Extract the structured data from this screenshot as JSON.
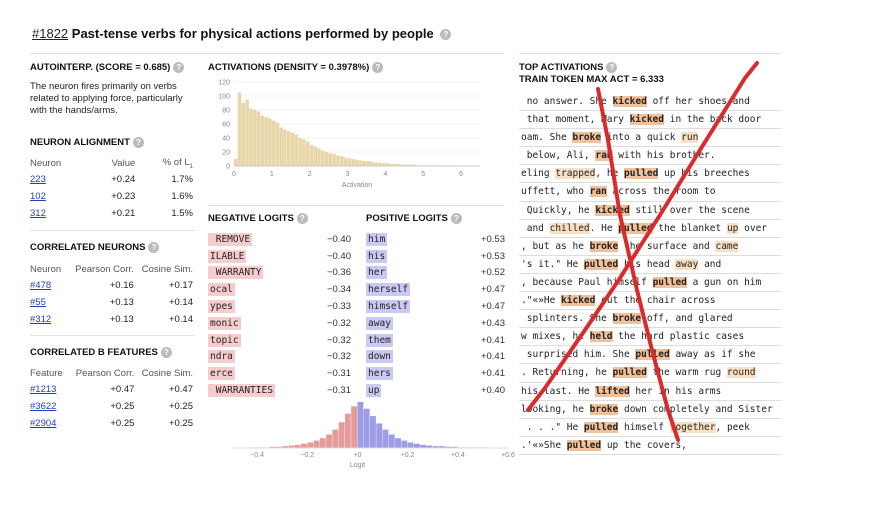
{
  "header": {
    "id_link": "#1822",
    "title": "Past-tense verbs for physical actions performed by people"
  },
  "autointerp": {
    "heading": "AUTOINTERP. (SCORE = 0.685)",
    "description": "The neuron fires primarily on verbs related to applying force, particularly with the hands/arms."
  },
  "alignment": {
    "heading": "NEURON ALIGNMENT",
    "columns": [
      "Neuron",
      "Value",
      "% of L1"
    ],
    "rows": [
      [
        "223",
        "+0.24",
        "1.7%"
      ],
      [
        "102",
        "+0.23",
        "1.6%"
      ],
      [
        "312",
        "+0.21",
        "1.5%"
      ]
    ]
  },
  "correlated_neurons": {
    "heading": "CORRELATED NEURONS",
    "columns": [
      "Neuron",
      "Pearson Corr.",
      "Cosine Sim."
    ],
    "rows": [
      [
        "#478",
        "+0.16",
        "+0.17"
      ],
      [
        "#55",
        "+0.13",
        "+0.14"
      ],
      [
        "#312",
        "+0.13",
        "+0.14"
      ]
    ]
  },
  "correlated_b": {
    "heading": "CORRELATED B FEATURES",
    "columns": [
      "Feature",
      "Pearson Corr.",
      "Cosine Sim."
    ],
    "rows": [
      [
        "#1213",
        "+0.47",
        "+0.47"
      ],
      [
        "#3622",
        "+0.25",
        "+0.25"
      ],
      [
        "#2904",
        "+0.25",
        "+0.25"
      ]
    ]
  },
  "activations": {
    "heading": "ACTIVATIONS (DENSITY = 0.3978%)",
    "chart_data": {
      "type": "bar",
      "xlabel": "Activation",
      "ylabel": "",
      "xlim": [
        0,
        6.5
      ],
      "ylim": [
        0,
        120
      ],
      "x_ticks": [
        "0",
        "1",
        "2",
        "3",
        "4",
        "5",
        "6"
      ],
      "y_ticks": [
        "0",
        "20",
        "40",
        "60",
        "80",
        "100",
        "120"
      ],
      "bin_width": 0.1,
      "values": [
        10,
        105,
        90,
        95,
        82,
        80,
        78,
        72,
        70,
        68,
        65,
        62,
        55,
        52,
        50,
        48,
        45,
        40,
        38,
        35,
        30,
        28,
        25,
        22,
        20,
        18,
        17,
        15,
        14,
        12,
        11,
        10,
        9,
        8,
        7,
        7,
        6,
        5,
        5,
        4,
        4,
        3,
        3,
        3,
        2,
        2,
        2,
        2,
        1,
        1,
        1,
        1,
        1,
        1,
        1,
        0,
        0,
        1,
        0,
        0,
        0,
        0,
        0,
        0,
        0
      ],
      "color": "#e8d5a8"
    }
  },
  "negative_logits": {
    "heading": "NEGATIVE LOGITS",
    "items": [
      {
        "token": " REMOVE",
        "value": "−0.40"
      },
      {
        "token": "ILABLE",
        "value": "−0.40"
      },
      {
        "token": " WARRANTY",
        "value": "−0.36"
      },
      {
        "token": "ocal",
        "value": "−0.34"
      },
      {
        "token": "ypes",
        "value": "−0.33"
      },
      {
        "token": "monic",
        "value": "−0.32"
      },
      {
        "token": "topic",
        "value": "−0.32"
      },
      {
        "token": "ndra",
        "value": "−0.32"
      },
      {
        "token": "erce",
        "value": "−0.31"
      },
      {
        "token": " WARRANTIES",
        "value": "−0.31"
      }
    ]
  },
  "positive_logits": {
    "heading": "POSITIVE LOGITS",
    "items": [
      {
        "token": "him",
        "value": "+0.53"
      },
      {
        "token": "his",
        "value": "+0.53"
      },
      {
        "token": "her",
        "value": "+0.52"
      },
      {
        "token": "herself",
        "value": "+0.47"
      },
      {
        "token": "himself",
        "value": "+0.47"
      },
      {
        "token": "away",
        "value": "+0.43"
      },
      {
        "token": "them",
        "value": "+0.41"
      },
      {
        "token": "down",
        "value": "+0.41"
      },
      {
        "token": "hers",
        "value": "+0.41"
      },
      {
        "token": "up",
        "value": "+0.40"
      }
    ]
  },
  "logit_hist": {
    "chart_data": {
      "type": "bar",
      "xlabel": "Logit",
      "xlim": [
        -0.5,
        0.6
      ],
      "x_ticks": [
        "−0.4",
        "−0.2",
        "+0",
        "+0.2",
        "+0.4",
        "+0.6"
      ],
      "bin_width": 0.025,
      "bins": [
        {
          "x": -0.425,
          "v": 1,
          "c": "neg"
        },
        {
          "x": -0.4,
          "v": 1,
          "c": "neg"
        },
        {
          "x": -0.375,
          "v": 1,
          "c": "neg"
        },
        {
          "x": -0.35,
          "v": 2,
          "c": "neg"
        },
        {
          "x": -0.325,
          "v": 2,
          "c": "neg"
        },
        {
          "x": -0.3,
          "v": 3,
          "c": "neg"
        },
        {
          "x": -0.275,
          "v": 4,
          "c": "neg"
        },
        {
          "x": -0.25,
          "v": 5,
          "c": "neg"
        },
        {
          "x": -0.225,
          "v": 7,
          "c": "neg"
        },
        {
          "x": -0.2,
          "v": 9,
          "c": "neg"
        },
        {
          "x": -0.175,
          "v": 12,
          "c": "neg"
        },
        {
          "x": -0.15,
          "v": 16,
          "c": "neg"
        },
        {
          "x": -0.125,
          "v": 22,
          "c": "neg"
        },
        {
          "x": -0.1,
          "v": 30,
          "c": "neg"
        },
        {
          "x": -0.075,
          "v": 42,
          "c": "neg"
        },
        {
          "x": -0.05,
          "v": 56,
          "c": "neg"
        },
        {
          "x": -0.025,
          "v": 68,
          "c": "neg"
        },
        {
          "x": 0.0,
          "v": 75,
          "c": "pos"
        },
        {
          "x": 0.025,
          "v": 64,
          "c": "pos"
        },
        {
          "x": 0.05,
          "v": 52,
          "c": "pos"
        },
        {
          "x": 0.075,
          "v": 40,
          "c": "pos"
        },
        {
          "x": 0.1,
          "v": 30,
          "c": "pos"
        },
        {
          "x": 0.125,
          "v": 22,
          "c": "pos"
        },
        {
          "x": 0.15,
          "v": 16,
          "c": "pos"
        },
        {
          "x": 0.175,
          "v": 12,
          "c": "pos"
        },
        {
          "x": 0.2,
          "v": 9,
          "c": "pos"
        },
        {
          "x": 0.225,
          "v": 7,
          "c": "pos"
        },
        {
          "x": 0.25,
          "v": 5,
          "c": "pos"
        },
        {
          "x": 0.275,
          "v": 4,
          "c": "pos"
        },
        {
          "x": 0.3,
          "v": 3,
          "c": "pos"
        },
        {
          "x": 0.325,
          "v": 3,
          "c": "pos"
        },
        {
          "x": 0.35,
          "v": 2,
          "c": "pos"
        },
        {
          "x": 0.375,
          "v": 2,
          "c": "pos"
        },
        {
          "x": 0.4,
          "v": 1,
          "c": "pos"
        },
        {
          "x": 0.425,
          "v": 1,
          "c": "pos"
        },
        {
          "x": 0.45,
          "v": 1,
          "c": "pos"
        },
        {
          "x": 0.475,
          "v": 1,
          "c": "pos"
        },
        {
          "x": 0.5,
          "v": 1,
          "c": "pos"
        }
      ],
      "colors": {
        "neg": "#e79a9a",
        "pos": "#9c9ce8"
      }
    }
  },
  "top_activations": {
    "heading": "TOP ACTIVATIONS",
    "subheading": "TRAIN TOKEN MAX ACT = 6.333",
    "rows": [
      [
        {
          "t": " no answer. She "
        },
        {
          "t": "kicked",
          "h": 1
        },
        {
          "t": " off her shoes and"
        }
      ],
      [
        {
          "t": " that moment, Mary "
        },
        {
          "t": "kicked",
          "h": 1
        },
        {
          "t": " in the back door"
        }
      ],
      [
        {
          "t": "oam. She "
        },
        {
          "t": "broke",
          "h": 1
        },
        {
          "t": " into a quick "
        },
        {
          "t": "run",
          "h": 2
        }
      ],
      [
        {
          "t": " below, Ali, "
        },
        {
          "t": "ran",
          "h": 1
        },
        {
          "t": " with his brother."
        }
      ],
      [
        {
          "t": "eling "
        },
        {
          "t": "trapped",
          "h": 2
        },
        {
          "t": ", he "
        },
        {
          "t": "pulled",
          "h": 1
        },
        {
          "t": " up his breeches"
        }
      ],
      [
        {
          "t": "uffett, who "
        },
        {
          "t": "ran",
          "h": 1
        },
        {
          "t": " across the room to"
        }
      ],
      [
        {
          "t": " Quickly, he "
        },
        {
          "t": "kicked",
          "h": 1
        },
        {
          "t": " still over the scene"
        }
      ],
      [
        {
          "t": " and "
        },
        {
          "t": "chilled",
          "h": 2
        },
        {
          "t": ". He "
        },
        {
          "t": "pulled",
          "h": 1
        },
        {
          "t": " the blanket "
        },
        {
          "t": "up",
          "h": 2
        },
        {
          "t": " over"
        }
      ],
      [
        {
          "t": ", but as he "
        },
        {
          "t": "broke",
          "h": 1
        },
        {
          "t": " the surface and "
        },
        {
          "t": "came",
          "h": 2
        }
      ],
      [
        {
          "t": "'s it.\" He "
        },
        {
          "t": "pulled",
          "h": 1
        },
        {
          "t": " his head "
        },
        {
          "t": "away",
          "h": 2
        },
        {
          "t": " and"
        }
      ],
      [
        {
          "t": ", because Paul himself "
        },
        {
          "t": "pulled",
          "h": 1
        },
        {
          "t": " a gun on him"
        }
      ],
      [
        {
          "t": ".\"«»He "
        },
        {
          "t": "kicked",
          "h": 1
        },
        {
          "t": " out the chair across"
        }
      ],
      [
        {
          "t": " splinters. She "
        },
        {
          "t": "broke",
          "h": 1
        },
        {
          "t": " off, and glared"
        }
      ],
      [
        {
          "t": "w mixes, he "
        },
        {
          "t": "held",
          "h": 1
        },
        {
          "t": " the hard plastic cases"
        }
      ],
      [
        {
          "t": " surprised him. She "
        },
        {
          "t": "pulled",
          "h": 1
        },
        {
          "t": " away as if she"
        }
      ],
      [
        {
          "t": ". Returning, he "
        },
        {
          "t": "pulled",
          "h": 1
        },
        {
          "t": " the warm rug "
        },
        {
          "t": "round",
          "h": 2
        }
      ],
      [
        {
          "t": "his last. He "
        },
        {
          "t": "lifted",
          "h": 1
        },
        {
          "t": " her in his arms"
        }
      ],
      [
        {
          "t": "looking, he "
        },
        {
          "t": "broke",
          "h": 1
        },
        {
          "t": " down completely and Sister"
        }
      ],
      [
        {
          "t": " . . .\" He "
        },
        {
          "t": "pulled",
          "h": 1
        },
        {
          "t": " himself "
        },
        {
          "t": "together",
          "h": 2
        },
        {
          "t": ", peek"
        }
      ],
      [
        {
          "t": ".'«»She "
        },
        {
          "t": "pulled",
          "h": 1
        },
        {
          "t": " up the covers,"
        }
      ]
    ]
  },
  "annotation": {
    "mark": "red-x-icon",
    "color": "#d92b2b"
  }
}
